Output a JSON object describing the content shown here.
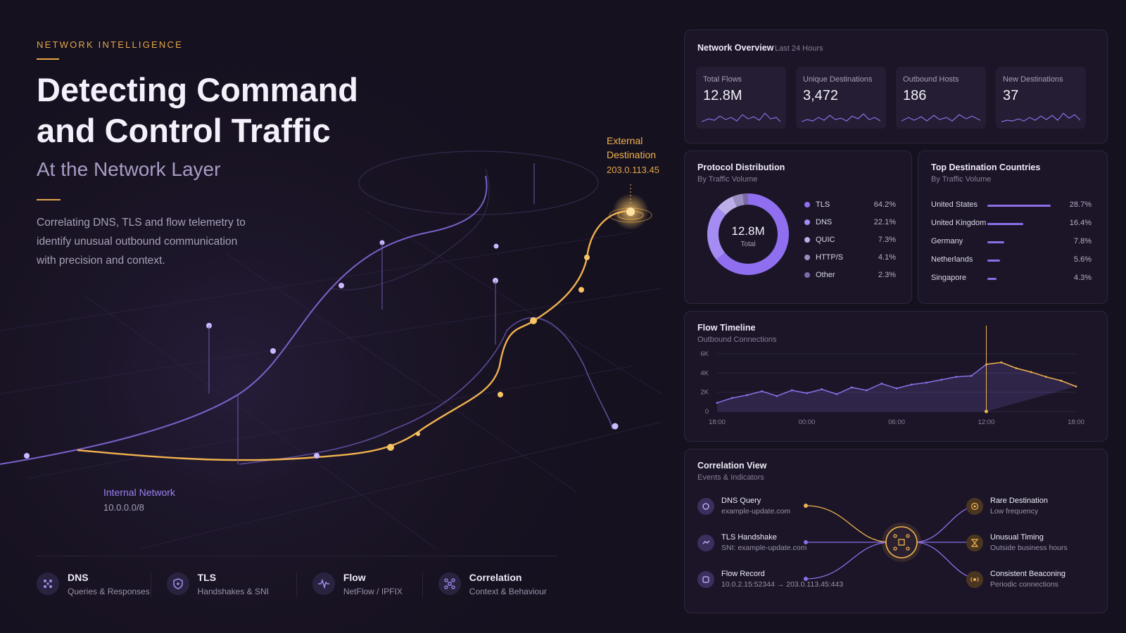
{
  "hero": {
    "eyebrow": "NETWORK INTELLIGENCE",
    "title_line1": "Detecting Command",
    "title_line2": "and Control Traffic",
    "subtitle": "At the Network Layer",
    "description": "Correlating DNS, TLS and flow telemetry to identify unusual outbound communication with precision and context."
  },
  "map": {
    "external_title_line1": "External",
    "external_title_line2": "Destination",
    "external_ip": "203.0.113.45",
    "internal_title": "Internal Network",
    "internal_cidr": "10.0.0.0/8"
  },
  "bottom_nav": [
    {
      "title": "DNS",
      "sub": "Queries & Responses",
      "icon": "dns-icon"
    },
    {
      "title": "TLS",
      "sub": "Handshakes & SNI",
      "icon": "shield-icon"
    },
    {
      "title": "Flow",
      "sub": "NetFlow / IPFIX",
      "icon": "pulse-icon"
    },
    {
      "title": "Correlation",
      "sub": "Context & Behaviour",
      "icon": "nodes-icon"
    }
  ],
  "overview": {
    "title": "Network Overview",
    "range": "Last 24 Hours",
    "kpis": [
      {
        "label": "Total Flows",
        "value": "12.8M"
      },
      {
        "label": "Unique Destinations",
        "value": "3,472"
      },
      {
        "label": "Outbound Hosts",
        "value": "186"
      },
      {
        "label": "New Destinations",
        "value": "37"
      }
    ]
  },
  "protocol": {
    "title": "Protocol Distribution",
    "subtitle": "By Traffic Volume",
    "center_value": "12.8M",
    "center_label": "Total",
    "items": [
      {
        "name": "TLS",
        "pct": "64.2%",
        "color": "#8f6ff0"
      },
      {
        "name": "DNS",
        "pct": "22.1%",
        "color": "#a58cf2"
      },
      {
        "name": "QUIC",
        "pct": "7.3%",
        "color": "#bcaee8"
      },
      {
        "name": "HTTP/S",
        "pct": "4.1%",
        "color": "#9a8ec0"
      },
      {
        "name": "Other",
        "pct": "2.3%",
        "color": "#7a6aa8"
      }
    ]
  },
  "countries": {
    "title": "Top Destination Countries",
    "subtitle": "By Traffic Volume",
    "items": [
      {
        "name": "United States",
        "pct": "28.7%",
        "value": 28.7
      },
      {
        "name": "United Kingdom",
        "pct": "16.4%",
        "value": 16.4
      },
      {
        "name": "Germany",
        "pct": "7.8%",
        "value": 7.8
      },
      {
        "name": "Netherlands",
        "pct": "5.6%",
        "value": 5.6
      },
      {
        "name": "Singapore",
        "pct": "4.3%",
        "value": 4.3
      }
    ]
  },
  "timeline": {
    "title": "Flow Timeline",
    "subtitle": "Outbound Connections"
  },
  "correlation": {
    "title": "Correlation View",
    "subtitle": "Events & Indicators",
    "left": [
      {
        "title": "DNS Query",
        "sub": "example-update.com",
        "icon": "dns-query-icon"
      },
      {
        "title": "TLS Handshake",
        "sub": "SNI: example-update.com",
        "icon": "handshake-icon"
      },
      {
        "title": "Flow Record",
        "sub": "10.0.2.15:52344 → 203.0.113.45:443",
        "icon": "flow-record-icon"
      }
    ],
    "right": [
      {
        "title": "Rare Destination",
        "sub": "Low frequency",
        "icon": "target-icon"
      },
      {
        "title": "Unusual Timing",
        "sub": "Outside business hours",
        "icon": "hourglass-icon"
      },
      {
        "title": "Consistent Beaconing",
        "sub": "Periodic connections",
        "icon": "beacon-icon"
      }
    ]
  },
  "colors": {
    "accent_purple": "#8d6ee8",
    "accent_amber": "#f0b24f",
    "background": "#16111f"
  },
  "chart_data": {
    "type": "line",
    "title": "Flow Timeline",
    "subtitle": "Outbound Connections",
    "x_tick_labels": [
      "18:00",
      "00:00",
      "06:00",
      "12:00",
      "18:00"
    ],
    "y_tick_labels": [
      "0",
      "2K",
      "4K",
      "6K"
    ],
    "ylim": [
      0,
      6000
    ],
    "x": [
      "18:00",
      "19:00",
      "20:00",
      "21:00",
      "22:00",
      "23:00",
      "00:00",
      "01:00",
      "02:00",
      "03:00",
      "04:00",
      "05:00",
      "06:00",
      "07:00",
      "08:00",
      "09:00",
      "10:00",
      "11:00",
      "12:00",
      "13:00",
      "14:00",
      "15:00",
      "16:00",
      "17:00",
      "18:00"
    ],
    "series": [
      {
        "values": [
          900,
          1400,
          1700,
          2100,
          1600,
          2200,
          1900,
          2300,
          1800,
          2500,
          2200,
          2900,
          2400,
          2800,
          3000,
          3300,
          3600,
          3700,
          4900,
          5100,
          4500,
          4100,
          3600,
          3200,
          2600
        ]
      }
    ],
    "highlight_from": "12:00",
    "grid": true
  }
}
